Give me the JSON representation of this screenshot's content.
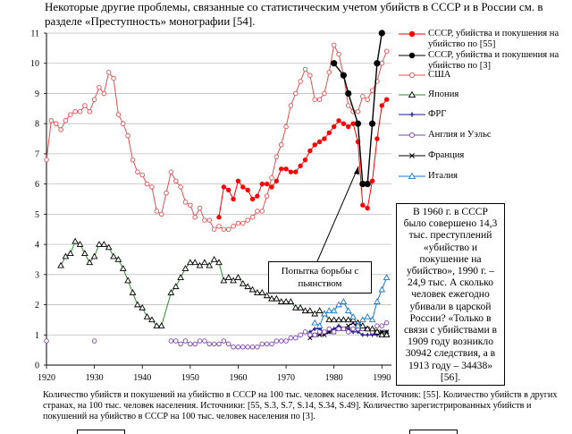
{
  "intro_text": "Некоторые другие проблемы, связанные со статистическим учетом убийств в СССР и в России см. в разделе «Преступность» монографии [54].",
  "caption_text": "Количество убийств и покушений на убийство в СССР на 100 тыс. человек населения. Источник: [55]. Количество убийств в других странах, на 100 тыс. человек населения. Источники: [55, S.3, S.7, S.14, S.34, S.49]. Количество зарегистрированных убийств и покушений на убийство в СССР на 100 тыс. человек населения по [3].",
  "annotation_text": "В 1960 г. в СССР было совершено 14,3 тыс. преступлений «убийство и покушение на убийство», 1990 г. – 24,9 тыс. А сколько человек ежегодно убивали в царской России? «Только в связи с убийствами в 1909 году возникло 30942 следствия, а в 1913 году – 34438» [56].",
  "callout_text": "Попытка борьбы с пьянством",
  "chart_data": {
    "type": "line",
    "xlim": [
      1920,
      1992
    ],
    "ylim": [
      0,
      11
    ],
    "x_ticks": [
      "1920",
      "1930",
      "1940",
      "1950",
      "1960",
      "1970",
      "1980",
      "1990"
    ],
    "y_ticks": [
      "0",
      "1",
      "2",
      "3",
      "4",
      "5",
      "6",
      "7",
      "8",
      "9",
      "10",
      "11"
    ],
    "grid": "horizontal",
    "legend_position": "right",
    "series": [
      {
        "name": "СССР, убийства и покушения на убийство по [55]",
        "color": "#ff0000",
        "marker": "filled-circle",
        "points": [
          [
            1956,
            4.9
          ],
          [
            1957,
            5.9
          ],
          [
            1958,
            5.8
          ],
          [
            1959,
            5.5
          ],
          [
            1960,
            6.1
          ],
          [
            1961,
            5.9
          ],
          [
            1962,
            5.8
          ],
          [
            1963,
            5.5
          ],
          [
            1964,
            5.6
          ],
          [
            1965,
            6.0
          ],
          [
            1966,
            6.0
          ],
          [
            1967,
            5.9
          ],
          [
            1968,
            6.1
          ],
          [
            1969,
            6.5
          ],
          [
            1970,
            6.5
          ],
          [
            1971,
            6.4
          ],
          [
            1972,
            6.4
          ],
          [
            1973,
            6.6
          ],
          [
            1974,
            6.8
          ],
          [
            1975,
            7.1
          ],
          [
            1976,
            7.3
          ],
          [
            1977,
            7.4
          ],
          [
            1978,
            7.5
          ],
          [
            1979,
            7.7
          ],
          [
            1980,
            7.9
          ],
          [
            1981,
            8.1
          ],
          [
            1982,
            8.0
          ],
          [
            1983,
            7.9
          ],
          [
            1984,
            8.0
          ],
          [
            1985,
            7.4
          ],
          [
            1986,
            5.3
          ],
          [
            1987,
            5.2
          ],
          [
            1988,
            6.1
          ],
          [
            1989,
            7.5
          ],
          [
            1990,
            8.6
          ],
          [
            1991,
            8.8
          ]
        ]
      },
      {
        "name": "СССР, убийства и покушения на убийство по [3]",
        "color": "#000000",
        "marker": "filled-circle",
        "points": [
          [
            1980,
            10.0
          ],
          [
            1982,
            9.6
          ],
          [
            1983,
            9.0
          ],
          [
            1985,
            8.0
          ],
          [
            1986,
            6.0
          ],
          [
            1987,
            6.0
          ],
          [
            1988,
            8.0
          ],
          [
            1989,
            10.0
          ],
          [
            1990,
            11.0
          ]
        ]
      },
      {
        "name": "США",
        "color": "#e05050",
        "marker": "open-circle",
        "points": [
          [
            1920,
            6.8
          ],
          [
            1921,
            8.1
          ],
          [
            1922,
            8.0
          ],
          [
            1923,
            7.8
          ],
          [
            1924,
            8.1
          ],
          [
            1925,
            8.3
          ],
          [
            1926,
            8.4
          ],
          [
            1927,
            8.4
          ],
          [
            1928,
            8.6
          ],
          [
            1929,
            8.4
          ],
          [
            1930,
            8.8
          ],
          [
            1931,
            9.2
          ],
          [
            1932,
            9.0
          ],
          [
            1933,
            9.7
          ],
          [
            1934,
            9.5
          ],
          [
            1935,
            8.3
          ],
          [
            1936,
            8.0
          ],
          [
            1937,
            7.6
          ],
          [
            1938,
            6.8
          ],
          [
            1939,
            6.4
          ],
          [
            1940,
            6.3
          ],
          [
            1941,
            6.0
          ],
          [
            1942,
            5.9
          ],
          [
            1943,
            5.1
          ],
          [
            1944,
            5.0
          ],
          [
            1945,
            5.7
          ],
          [
            1946,
            6.4
          ],
          [
            1947,
            6.1
          ],
          [
            1948,
            5.9
          ],
          [
            1949,
            5.4
          ],
          [
            1950,
            5.3
          ],
          [
            1951,
            4.9
          ],
          [
            1952,
            5.2
          ],
          [
            1953,
            4.8
          ],
          [
            1954,
            4.8
          ],
          [
            1955,
            4.5
          ],
          [
            1956,
            4.6
          ],
          [
            1957,
            4.5
          ],
          [
            1958,
            4.5
          ],
          [
            1959,
            4.6
          ],
          [
            1960,
            4.7
          ],
          [
            1961,
            4.7
          ],
          [
            1962,
            4.8
          ],
          [
            1963,
            4.9
          ],
          [
            1964,
            5.1
          ],
          [
            1965,
            5.1
          ],
          [
            1966,
            5.6
          ],
          [
            1967,
            6.2
          ],
          [
            1968,
            6.9
          ],
          [
            1969,
            7.3
          ],
          [
            1970,
            7.9
          ],
          [
            1971,
            8.6
          ],
          [
            1972,
            9.0
          ],
          [
            1973,
            9.4
          ],
          [
            1974,
            9.8
          ],
          [
            1975,
            9.6
          ],
          [
            1976,
            8.8
          ],
          [
            1977,
            8.8
          ],
          [
            1978,
            9.0
          ],
          [
            1979,
            9.7
          ],
          [
            1980,
            10.6
          ],
          [
            1981,
            10.3
          ],
          [
            1982,
            9.6
          ],
          [
            1983,
            8.6
          ],
          [
            1984,
            8.4
          ],
          [
            1985,
            8.4
          ],
          [
            1986,
            8.9
          ],
          [
            1987,
            8.8
          ],
          [
            1988,
            9.1
          ],
          [
            1989,
            9.4
          ],
          [
            1990,
            10.0
          ],
          [
            1991,
            10.4
          ]
        ]
      },
      {
        "name": "Япония",
        "color": "#000000",
        "line_color": "#2e8b2e",
        "marker": "open-triangle",
        "points": [
          [
            1923,
            3.3
          ],
          [
            1924,
            3.6
          ],
          [
            1925,
            3.7
          ],
          [
            1926,
            4.1
          ],
          [
            1927,
            4.0
          ],
          [
            1928,
            3.7
          ],
          [
            1929,
            3.4
          ],
          [
            1930,
            3.6
          ],
          [
            1931,
            4.0
          ],
          [
            1932,
            4.0
          ],
          [
            1933,
            3.9
          ],
          [
            1934,
            3.6
          ],
          [
            1935,
            3.5
          ],
          [
            1936,
            3.2
          ],
          [
            1937,
            2.8
          ],
          [
            1938,
            2.4
          ],
          [
            1939,
            2.0
          ],
          [
            1940,
            1.9
          ],
          [
            1941,
            1.6
          ],
          [
            1942,
            1.5
          ],
          [
            1943,
            1.3
          ],
          [
            1944,
            1.3
          ],
          [
            1946,
            2.4
          ],
          [
            1947,
            2.6
          ],
          [
            1948,
            2.9
          ],
          [
            1949,
            3.2
          ],
          [
            1950,
            3.4
          ],
          [
            1951,
            3.4
          ],
          [
            1952,
            3.3
          ],
          [
            1953,
            3.4
          ],
          [
            1954,
            3.3
          ],
          [
            1955,
            3.5
          ],
          [
            1956,
            3.4
          ],
          [
            1957,
            2.8
          ],
          [
            1958,
            2.9
          ],
          [
            1959,
            2.8
          ],
          [
            1960,
            2.9
          ],
          [
            1961,
            2.7
          ],
          [
            1962,
            2.6
          ],
          [
            1963,
            2.5
          ],
          [
            1964,
            2.4
          ],
          [
            1965,
            2.4
          ],
          [
            1966,
            2.3
          ],
          [
            1967,
            2.2
          ],
          [
            1968,
            2.2
          ],
          [
            1969,
            2.1
          ],
          [
            1970,
            2.1
          ],
          [
            1971,
            2.1
          ],
          [
            1972,
            1.9
          ],
          [
            1973,
            1.9
          ],
          [
            1974,
            1.8
          ],
          [
            1975,
            1.8
          ],
          [
            1976,
            1.7
          ],
          [
            1977,
            1.8
          ],
          [
            1978,
            1.7
          ],
          [
            1979,
            1.5
          ],
          [
            1980,
            1.5
          ],
          [
            1981,
            1.5
          ],
          [
            1982,
            1.5
          ],
          [
            1983,
            1.5
          ],
          [
            1984,
            1.5
          ],
          [
            1985,
            1.4
          ],
          [
            1986,
            1.3
          ],
          [
            1987,
            1.2
          ],
          [
            1988,
            1.2
          ],
          [
            1989,
            1.1
          ],
          [
            1990,
            1.0
          ],
          [
            1991,
            1.0
          ]
        ]
      },
      {
        "name": "ФРГ",
        "color": "#1a1a8c",
        "marker": "cross",
        "points": [
          [
            1975,
            1.1
          ],
          [
            1976,
            1.2
          ],
          [
            1977,
            1.2
          ],
          [
            1978,
            1.1
          ],
          [
            1979,
            1.1
          ],
          [
            1980,
            1.2
          ],
          [
            1981,
            1.3
          ],
          [
            1982,
            1.2
          ],
          [
            1983,
            1.2
          ],
          [
            1984,
            1.1
          ],
          [
            1985,
            1.1
          ],
          [
            1986,
            1.0
          ],
          [
            1987,
            1.0
          ],
          [
            1988,
            1.0
          ],
          [
            1989,
            1.0
          ],
          [
            1990,
            1.1
          ],
          [
            1991,
            1.1
          ]
        ]
      },
      {
        "name": "Англия и Уэльс",
        "color": "#8040b0",
        "marker": "open-circle",
        "points": [
          [
            1920,
            0.8
          ],
          [
            1930,
            0.8
          ],
          [
            1946,
            0.8
          ],
          [
            1947,
            0.8
          ],
          [
            1948,
            0.7
          ],
          [
            1949,
            0.8
          ],
          [
            1950,
            0.7
          ],
          [
            1951,
            0.7
          ],
          [
            1952,
            0.8
          ],
          [
            1953,
            0.8
          ],
          [
            1954,
            0.7
          ],
          [
            1955,
            0.7
          ],
          [
            1956,
            0.7
          ],
          [
            1957,
            0.8
          ],
          [
            1958,
            0.7
          ],
          [
            1959,
            0.6
          ],
          [
            1960,
            0.6
          ],
          [
            1961,
            0.6
          ],
          [
            1962,
            0.6
          ],
          [
            1963,
            0.6
          ],
          [
            1964,
            0.6
          ],
          [
            1965,
            0.7
          ],
          [
            1966,
            0.7
          ],
          [
            1967,
            0.7
          ],
          [
            1968,
            0.8
          ],
          [
            1969,
            0.8
          ],
          [
            1970,
            0.8
          ],
          [
            1971,
            0.9
          ],
          [
            1972,
            0.9
          ],
          [
            1973,
            1.0
          ],
          [
            1974,
            1.1
          ],
          [
            1975,
            1.0
          ],
          [
            1976,
            1.0
          ],
          [
            1977,
            1.1
          ],
          [
            1978,
            1.1
          ],
          [
            1979,
            1.2
          ],
          [
            1980,
            1.1
          ],
          [
            1981,
            1.2
          ],
          [
            1982,
            1.2
          ],
          [
            1983,
            1.1
          ],
          [
            1984,
            1.2
          ],
          [
            1985,
            1.2
          ],
          [
            1986,
            1.2
          ],
          [
            1987,
            1.2
          ],
          [
            1988,
            1.1
          ],
          [
            1989,
            1.3
          ],
          [
            1990,
            1.3
          ],
          [
            1991,
            1.4
          ]
        ]
      },
      {
        "name": "Франция",
        "color": "#000000",
        "marker": "x",
        "points": [
          [
            1975,
            0.9
          ],
          [
            1976,
            1.0
          ],
          [
            1977,
            1.0
          ],
          [
            1978,
            1.0
          ],
          [
            1979,
            1.1
          ],
          [
            1980,
            1.1
          ],
          [
            1981,
            1.2
          ],
          [
            1982,
            1.2
          ],
          [
            1983,
            1.3
          ],
          [
            1984,
            1.4
          ],
          [
            1985,
            1.2
          ],
          [
            1986,
            1.2
          ],
          [
            1987,
            1.2
          ],
          [
            1988,
            1.1
          ],
          [
            1989,
            1.1
          ],
          [
            1990,
            1.1
          ],
          [
            1991,
            1.1
          ]
        ]
      },
      {
        "name": "Италия",
        "color": "#1a78c8",
        "marker": "open-triangle",
        "points": [
          [
            1976,
            1.4
          ],
          [
            1977,
            1.3
          ],
          [
            1978,
            1.7
          ],
          [
            1979,
            1.8
          ],
          [
            1980,
            1.8
          ],
          [
            1981,
            2.0
          ],
          [
            1982,
            2.1
          ],
          [
            1983,
            1.8
          ],
          [
            1984,
            1.6
          ],
          [
            1985,
            1.3
          ],
          [
            1986,
            1.5
          ],
          [
            1987,
            1.6
          ],
          [
            1988,
            1.5
          ],
          [
            1989,
            2.1
          ],
          [
            1990,
            2.5
          ],
          [
            1991,
            2.9
          ]
        ]
      }
    ]
  }
}
